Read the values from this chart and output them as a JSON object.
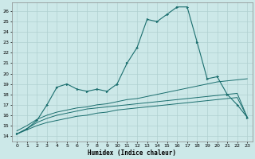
{
  "xlabel": "Humidex (Indice chaleur)",
  "bg_color": "#cce8e8",
  "line_color": "#1a6e6e",
  "grid_color": "#b0d0d0",
  "xlim": [
    -0.5,
    23.5
  ],
  "ylim": [
    13.5,
    26.8
  ],
  "xticks": [
    0,
    1,
    2,
    3,
    4,
    5,
    6,
    7,
    8,
    9,
    10,
    11,
    12,
    13,
    14,
    15,
    16,
    17,
    18,
    19,
    20,
    21,
    22,
    23
  ],
  "yticks": [
    14,
    15,
    16,
    17,
    18,
    19,
    20,
    21,
    22,
    23,
    24,
    25,
    26
  ],
  "line1_x": [
    0,
    1,
    2,
    3,
    4,
    5,
    6,
    7,
    8,
    9,
    10,
    11,
    12,
    13,
    14,
    15,
    16,
    17,
    18,
    19,
    20,
    21,
    22,
    23
  ],
  "line1_y": [
    14.2,
    14.7,
    15.5,
    17.0,
    18.7,
    19.0,
    18.5,
    18.3,
    18.5,
    18.3,
    19.0,
    21.0,
    22.5,
    25.2,
    25.0,
    25.7,
    26.4,
    26.4,
    23.0,
    19.5,
    19.7,
    18.0,
    17.0,
    15.8
  ],
  "line2_x": [
    0,
    1,
    2,
    3,
    4,
    5,
    6,
    7,
    8,
    9,
    10,
    11,
    12,
    13,
    14,
    15,
    16,
    17,
    18,
    19,
    20,
    21,
    22,
    23
  ],
  "line2_y": [
    14.5,
    15.0,
    15.6,
    16.0,
    16.3,
    16.5,
    16.7,
    16.8,
    17.0,
    17.1,
    17.3,
    17.5,
    17.6,
    17.8,
    18.0,
    18.2,
    18.4,
    18.6,
    18.8,
    19.0,
    19.2,
    19.3,
    19.4,
    19.5
  ],
  "line3_x": [
    0,
    1,
    2,
    3,
    4,
    5,
    6,
    7,
    8,
    9,
    10,
    11,
    12,
    13,
    14,
    15,
    16,
    17,
    18,
    19,
    20,
    21,
    22,
    23
  ],
  "line3_y": [
    14.2,
    14.6,
    15.0,
    15.3,
    15.5,
    15.7,
    15.9,
    16.0,
    16.2,
    16.3,
    16.5,
    16.6,
    16.7,
    16.8,
    16.9,
    17.0,
    17.1,
    17.2,
    17.3,
    17.4,
    17.5,
    17.6,
    17.7,
    15.8
  ],
  "line4_x": [
    0,
    1,
    2,
    3,
    4,
    5,
    6,
    7,
    8,
    9,
    10,
    11,
    12,
    13,
    14,
    15,
    16,
    17,
    18,
    19,
    20,
    21,
    22,
    23
  ],
  "line4_y": [
    14.2,
    14.7,
    15.3,
    15.7,
    16.0,
    16.2,
    16.4,
    16.6,
    16.7,
    16.8,
    16.9,
    17.0,
    17.1,
    17.2,
    17.3,
    17.4,
    17.5,
    17.6,
    17.7,
    17.8,
    17.9,
    18.0,
    18.1,
    15.8
  ]
}
